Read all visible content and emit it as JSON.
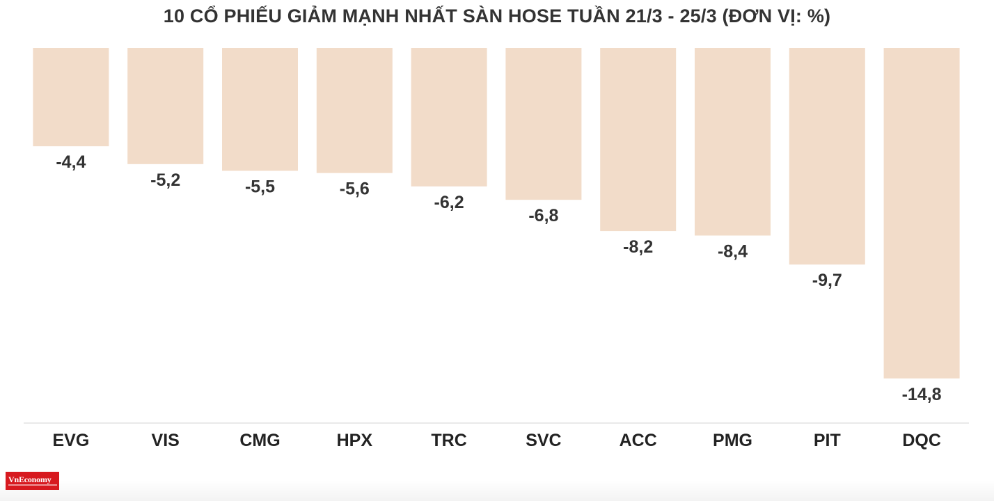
{
  "chart_data": {
    "type": "bar",
    "title": "10 CỔ PHIẾU GIẢM MẠNH NHẤT SÀN HOSE TUẦN 21/3 - 25/3 (ĐƠN VỊ: %)",
    "categories": [
      "EVG",
      "VIS",
      "CMG",
      "HPX",
      "TRC",
      "SVC",
      "ACC",
      "PMG",
      "PIT",
      "DQC"
    ],
    "values": [
      -4.4,
      -5.2,
      -5.5,
      -5.6,
      -6.2,
      -6.8,
      -8.2,
      -8.4,
      -9.7,
      -14.8
    ],
    "data_labels": [
      "-4,4",
      "-5,2",
      "-5,5",
      "-5,6",
      "-6,2",
      "-6,8",
      "-8,2",
      "-8,4",
      "-9,7",
      "-14,8"
    ],
    "xlabel": "",
    "ylabel": "",
    "ylim": [
      -16.8,
      0
    ],
    "grid": false,
    "bar_color": "#f2dcc9",
    "axis_color": "#e2e2e2",
    "label_color": "#333333"
  },
  "logo": {
    "text": "VnEconomy",
    "color": "#d7191f"
  }
}
